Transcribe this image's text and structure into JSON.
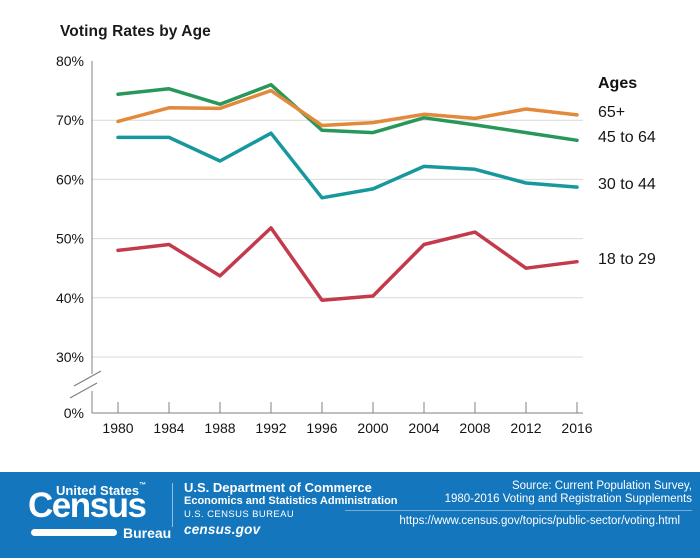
{
  "chart_data": {
    "type": "line",
    "title": "Voting Rates by Age",
    "x": [
      1980,
      1984,
      1988,
      1992,
      1996,
      2000,
      2004,
      2008,
      2012,
      2016
    ],
    "series": [
      {
        "name": "65+",
        "color": "#e3893b",
        "values": [
          69.8,
          72.1,
          72.0,
          75.0,
          69.1,
          69.6,
          71.0,
          70.3,
          71.9,
          70.9
        ]
      },
      {
        "name": "45 to 64",
        "color": "#27985a",
        "values": [
          74.4,
          75.3,
          72.7,
          76.0,
          68.3,
          67.9,
          70.4,
          69.2,
          67.9,
          66.6
        ]
      },
      {
        "name": "30 to 44",
        "color": "#17989d",
        "values": [
          67.1,
          67.1,
          63.1,
          67.8,
          56.9,
          58.4,
          62.2,
          61.7,
          59.4,
          58.7
        ]
      },
      {
        "name": "18 to 29",
        "color": "#c23a4c",
        "values": [
          48.0,
          49.0,
          43.7,
          51.8,
          39.6,
          40.3,
          49.0,
          51.1,
          45.0,
          46.1
        ]
      }
    ],
    "y_ticks": [
      {
        "label": "80%",
        "value": 80,
        "grid": false
      },
      {
        "label": "70%",
        "value": 70,
        "grid": true
      },
      {
        "label": "60%",
        "value": 60,
        "grid": true
      },
      {
        "label": "50%",
        "value": 50,
        "grid": true
      },
      {
        "label": "40%",
        "value": 40,
        "grid": true
      },
      {
        "label": "30%",
        "value": 30,
        "grid": true
      },
      {
        "label": "0%",
        "value": 0,
        "grid": false
      }
    ],
    "ylim": [
      0,
      80
    ],
    "axis_break_between": [
      0,
      30
    ],
    "grid": "horizontal",
    "legend_title": "Ages",
    "legend_position": "right"
  },
  "legend": {
    "title": "Ages",
    "items": [
      "65+",
      "45 to 64",
      "30 to 44",
      "18 to 29"
    ]
  },
  "footer": {
    "background": "#1476bd",
    "logo": {
      "top": "United States",
      "tm": "™",
      "main": "Census",
      "sub": "Bureau"
    },
    "dept": {
      "line1": "U.S. Department of Commerce",
      "line2": "Economics and Statistics Administration",
      "line3": "U.S. CENSUS BUREAU",
      "line4": "census.gov"
    },
    "source": {
      "line1": "Source: Current Population Survey,",
      "line2": "1980-2016 Voting and Registration Supplements",
      "url": "https://www.census.gov/topics/public-sector/voting.html"
    }
  }
}
